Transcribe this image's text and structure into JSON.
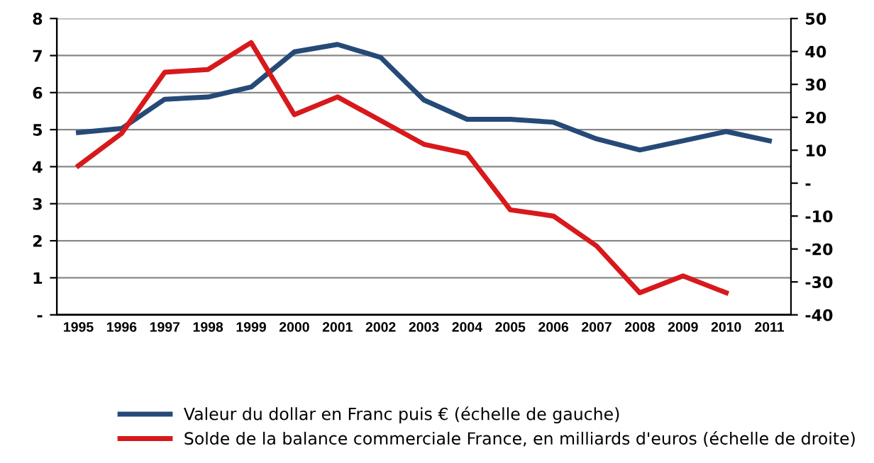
{
  "chart_data": {
    "type": "line",
    "categories": [
      "1995",
      "1996",
      "1997",
      "1998",
      "1999",
      "2000",
      "2001",
      "2002",
      "2003",
      "2004",
      "2005",
      "2006",
      "2007",
      "2008",
      "2009",
      "2010",
      "2011"
    ],
    "series": [
      {
        "name": "Valeur du dollar en Franc puis € (échelle de gauche)",
        "color": "#254a77",
        "values": [
          4.92,
          5.03,
          5.82,
          5.88,
          6.15,
          7.1,
          7.3,
          6.95,
          5.8,
          5.28,
          5.28,
          5.2,
          4.75,
          4.45,
          4.7,
          4.95,
          4.7
        ]
      },
      {
        "name": "Solde de la balance commerciale France, en milliards d'euros (échelle de droite)",
        "color": "#d7191c",
        "axis": "y2",
        "values": [
          5.3,
          15.1,
          33.7,
          34.5,
          42.7,
          20.8,
          26.2,
          19,
          11.8,
          9,
          -8.1,
          -10,
          -19.1,
          -33.3,
          -28.2,
          -33.3,
          null
        ]
      }
    ],
    "ylim": [
      0,
      8
    ],
    "yticks": [
      {
        "value": 0,
        "label": "-"
      },
      1,
      2,
      3,
      4,
      5,
      6,
      7,
      8
    ],
    "y2lim": [
      -40,
      50
    ],
    "y2ticks": [
      -40,
      -30,
      -20,
      -10,
      {
        "value": 0,
        "label": "-"
      },
      10,
      20,
      30,
      40,
      50
    ],
    "grid": "y",
    "legend": "bottom",
    "marker": "none",
    "line_style": "solid"
  }
}
